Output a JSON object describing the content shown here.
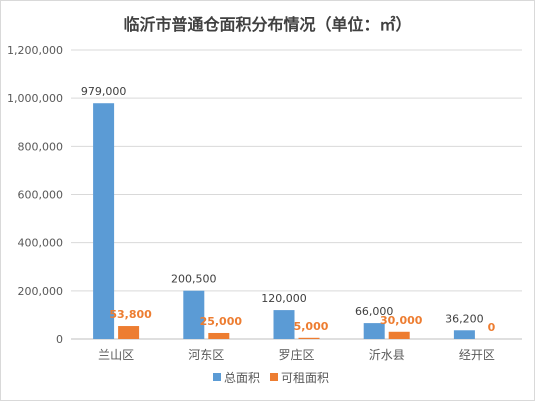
{
  "chart_data": {
    "type": "bar",
    "title": "临沂市普通仓面积分布情况（单位：㎡）",
    "categories": [
      "兰山区",
      "河东区",
      "罗庄区",
      "沂水县",
      "经开区"
    ],
    "series": [
      {
        "name": "总面积",
        "values": [
          979000,
          200500,
          120000,
          66000,
          36200
        ],
        "labels": [
          "979,000",
          "200,500",
          "120,000",
          "66,000",
          "36,200"
        ],
        "color": "#5b9bd5"
      },
      {
        "name": "可租面积",
        "values": [
          53800,
          25000,
          5000,
          30000,
          0
        ],
        "labels": [
          "53,800",
          "25,000",
          "5,000",
          "30,000",
          "0"
        ],
        "color": "#ed7d31"
      }
    ],
    "yticks": [
      "0",
      "200,000",
      "400,000",
      "600,000",
      "800,000",
      "1,000,000",
      "1,200,000"
    ],
    "ylim": [
      0,
      1200000
    ],
    "grid": true,
    "legend": "bottom"
  }
}
